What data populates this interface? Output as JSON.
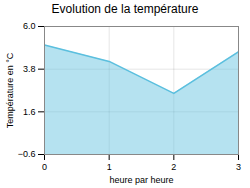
{
  "chart_data": {
    "type": "area",
    "title": "Evolution de la température",
    "xlabel": "heure par heure",
    "ylabel": "Température en °C",
    "x": [
      0,
      1,
      2,
      3
    ],
    "values": [
      5.05,
      4.2,
      2.55,
      4.7
    ],
    "color": "#5bbfde",
    "xlim": [
      0,
      3
    ],
    "ylim": [
      -0.6,
      6
    ],
    "xticks": [
      0,
      1,
      2,
      3
    ],
    "yticks": [
      -0.6,
      1.6,
      3.8,
      {
        "value": 6,
        "label": "6.0"
      }
    ],
    "grid": true
  }
}
